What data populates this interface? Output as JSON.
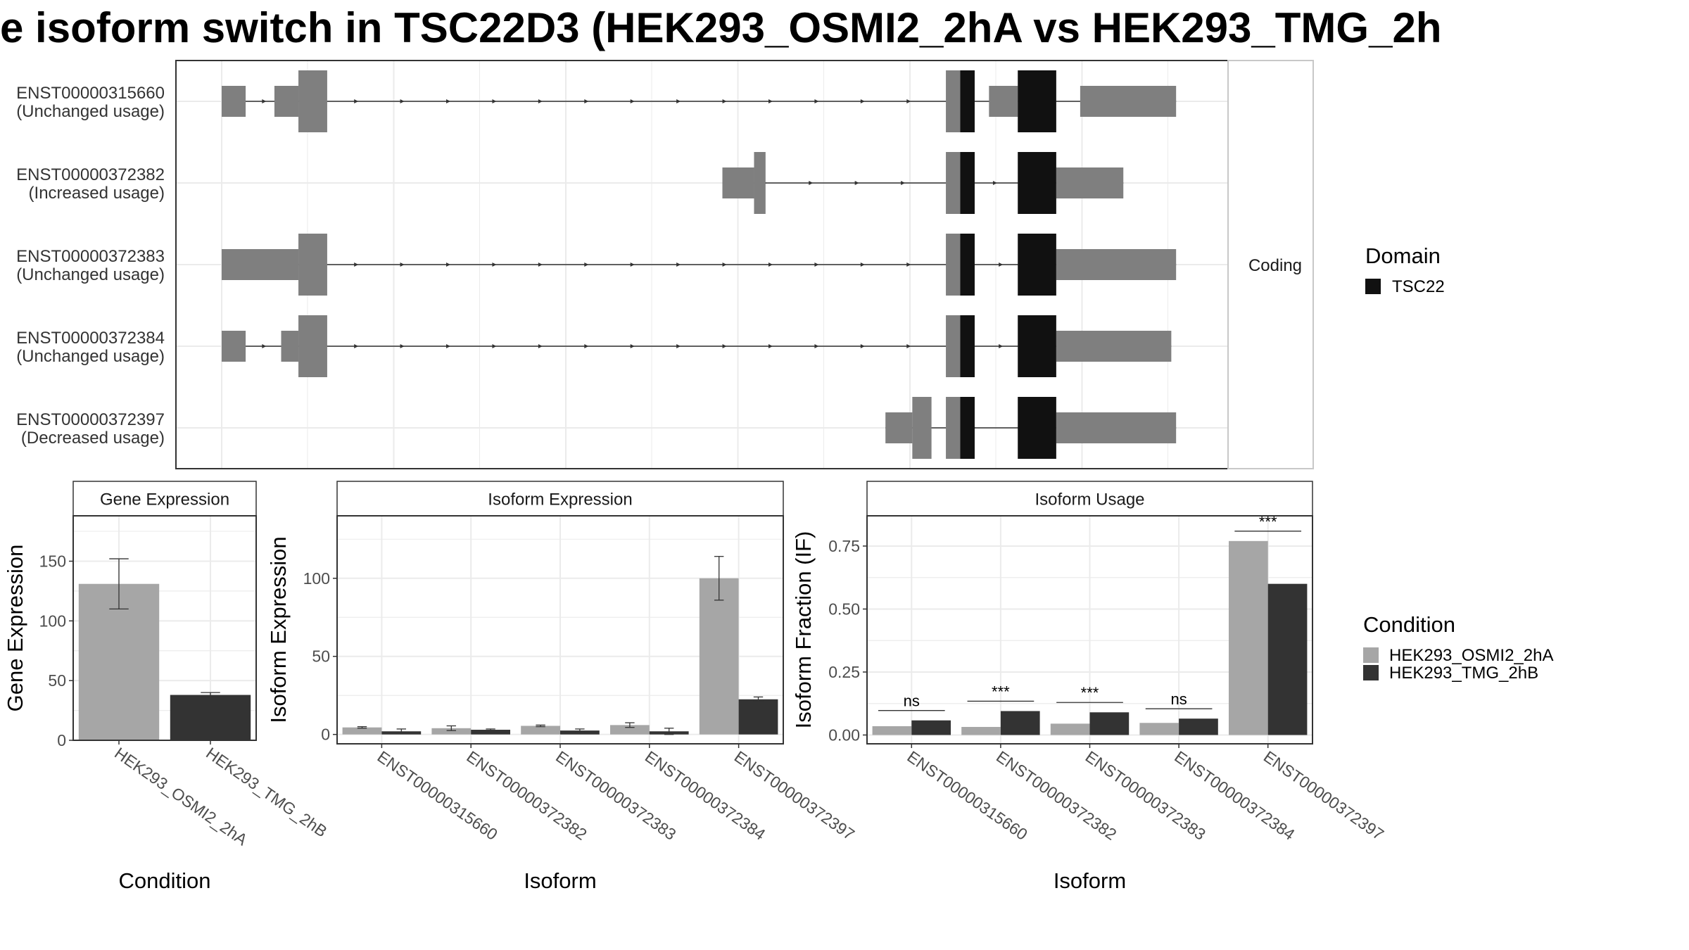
{
  "title": "e isoform switch in TSC22D3 (HEK293_OSMI2_2hA vs HEK293_TMG_2h",
  "colors": {
    "exon": "#7f7f7f",
    "domain": "#111111",
    "cond1": "#a6a6a6",
    "cond2": "#333333",
    "grid": "#ebebeb",
    "panel_border": "#333333",
    "strip_fill": "#ffffff"
  },
  "transcript_panel": {
    "strip_label": "Coding",
    "transcripts": [
      {
        "id": "ENST00000315660",
        "usage": "(Unchanged usage)",
        "noncoding": [
          [
            0.0,
            0.025
          ],
          [
            0.055,
            0.08
          ],
          [
            0.8,
            0.83
          ]
        ],
        "utr": [
          [
            0.055,
            0.08
          ],
          [
            0.8,
            0.83
          ],
          [
            0.895,
            0.995
          ]
        ],
        "cds": [
          [
            0.08,
            0.11
          ],
          [
            0.755,
            0.785
          ],
          [
            0.83,
            0.87
          ]
        ],
        "domains": [
          [
            0.77,
            0.785
          ],
          [
            0.83,
            0.87
          ]
        ]
      },
      {
        "id": "ENST00000372382",
        "usage": "(Increased usage)",
        "noncoding": [],
        "utr": [
          [
            0.522,
            0.555
          ],
          [
            0.87,
            0.94
          ]
        ],
        "cds": [
          [
            0.555,
            0.567
          ],
          [
            0.755,
            0.785
          ],
          [
            0.83,
            0.87
          ]
        ],
        "domains": [
          [
            0.77,
            0.785
          ],
          [
            0.83,
            0.87
          ]
        ]
      },
      {
        "id": "ENST00000372383",
        "usage": "(Unchanged usage)",
        "noncoding": [],
        "utr": [
          [
            0.0,
            0.08
          ],
          [
            0.87,
            0.995
          ]
        ],
        "cds": [
          [
            0.08,
            0.11
          ],
          [
            0.755,
            0.785
          ],
          [
            0.83,
            0.87
          ]
        ],
        "domains": [
          [
            0.77,
            0.785
          ],
          [
            0.83,
            0.87
          ]
        ]
      },
      {
        "id": "ENST00000372384",
        "usage": "(Unchanged usage)",
        "noncoding": [
          [
            0.0,
            0.025
          ]
        ],
        "utr": [
          [
            0.062,
            0.08
          ],
          [
            0.87,
            0.99
          ]
        ],
        "cds": [
          [
            0.08,
            0.11
          ],
          [
            0.755,
            0.785
          ],
          [
            0.83,
            0.87
          ]
        ],
        "domains": [
          [
            0.77,
            0.785
          ],
          [
            0.83,
            0.87
          ]
        ]
      },
      {
        "id": "ENST00000372397",
        "usage": "(Decreased usage)",
        "noncoding": [],
        "utr": [
          [
            0.692,
            0.72
          ],
          [
            0.87,
            0.995
          ]
        ],
        "cds": [
          [
            0.72,
            0.74
          ],
          [
            0.755,
            0.785
          ],
          [
            0.83,
            0.87
          ]
        ],
        "domains": [
          [
            0.77,
            0.785
          ],
          [
            0.83,
            0.87
          ]
        ]
      }
    ]
  },
  "legend_domain": {
    "title": "Domain",
    "items": [
      {
        "label": "TSC22",
        "color": "#111111"
      }
    ]
  },
  "legend_condition": {
    "title": "Condition",
    "items": [
      {
        "label": "HEK293_OSMI2_2hA",
        "color": "#a6a6a6"
      },
      {
        "label": "HEK293_TMG_2hB",
        "color": "#333333"
      }
    ]
  },
  "chart_data": [
    {
      "type": "bar",
      "title": "Gene Expression",
      "xlabel": "Condition",
      "ylabel": "Gene Expression",
      "categories": [
        "HEK293_OSMI2_2hA",
        "HEK293_TMG_2hB"
      ],
      "values": [
        131,
        38
      ],
      "error": [
        [
          110,
          152
        ],
        [
          36,
          40
        ]
      ],
      "ylim": [
        0,
        188
      ],
      "yticks": [
        0,
        50,
        100,
        150
      ],
      "ytick_labels": [
        "0",
        "50",
        "100",
        "150"
      ]
    },
    {
      "type": "bar",
      "title": "Isoform Expression",
      "xlabel": "Isoform",
      "ylabel": "Isoform Expression",
      "categories": [
        "ENST00000315660",
        "ENST00000372382",
        "ENST00000372383",
        "ENST00000372384",
        "ENST00000372397"
      ],
      "series": [
        {
          "name": "HEK293_OSMI2_2hA",
          "values": [
            4.5,
            4,
            5.5,
            6,
            100
          ],
          "error": [
            [
              4,
              5
            ],
            [
              2.5,
              5.5
            ],
            [
              5,
              6
            ],
            [
              4.5,
              7.5
            ],
            [
              86,
              114
            ]
          ]
        },
        {
          "name": "HEK293_TMG_2hB",
          "values": [
            2,
            3,
            2.5,
            2,
            22.5
          ],
          "error": [
            [
              0.5,
              3.5
            ],
            [
              2.5,
              3.5
            ],
            [
              1.5,
              3.5
            ],
            [
              0,
              4
            ],
            [
              21.5,
              24
            ]
          ]
        }
      ],
      "ylim": [
        -6,
        140
      ],
      "yticks": [
        0,
        50,
        100
      ],
      "ytick_labels": [
        "0",
        "50",
        "100"
      ]
    },
    {
      "type": "bar",
      "title": "Isoform Usage",
      "xlabel": "Isoform",
      "ylabel": "Isoform Fraction (IF)",
      "categories": [
        "ENST00000315660",
        "ENST00000372382",
        "ENST00000372383",
        "ENST00000372384",
        "ENST00000372397"
      ],
      "series": [
        {
          "name": "HEK293_OSMI2_2hA",
          "values": [
            0.035,
            0.032,
            0.045,
            0.048,
            0.77
          ]
        },
        {
          "name": "HEK293_TMG_2hB",
          "values": [
            0.058,
            0.095,
            0.09,
            0.065,
            0.6
          ]
        }
      ],
      "significance": [
        "ns",
        "***",
        "***",
        "ns",
        "***"
      ],
      "ylim": [
        -0.035,
        0.87
      ],
      "yticks": [
        0,
        0.25,
        0.5,
        0.75
      ],
      "ytick_labels": [
        "0.00",
        "0.25",
        "0.50",
        "0.75"
      ]
    }
  ]
}
